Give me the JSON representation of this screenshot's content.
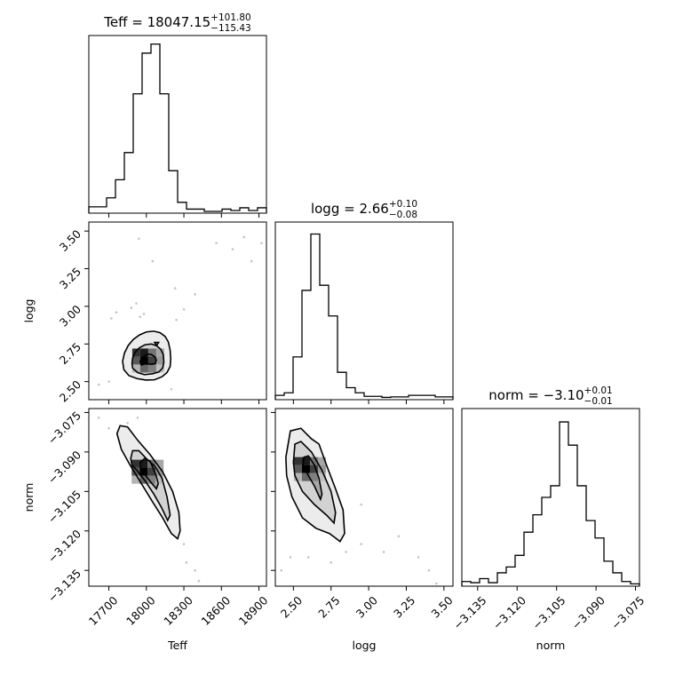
{
  "chart_data": {
    "type": "corner",
    "parameters": [
      "Teff",
      "logg",
      "norm"
    ],
    "titles": [
      {
        "param": "Teff",
        "median": "18047.15",
        "plus": "+101.80",
        "minus": "−115.43"
      },
      {
        "param": "logg",
        "median": "2.66",
        "plus": "+0.10",
        "minus": "−0.08"
      },
      {
        "param": "norm",
        "median": "−3.10",
        "plus": "+0.01",
        "minus": "−0.01"
      }
    ],
    "axes": {
      "Teff": {
        "range": [
          17540,
          18960
        ],
        "ticks": [
          17700,
          18000,
          18300,
          18600,
          18900
        ],
        "tick_labels": [
          "17700",
          "18000",
          "18300",
          "18600",
          "18900"
        ]
      },
      "logg": {
        "range": [
          2.38,
          3.56
        ],
        "ticks": [
          2.5,
          2.75,
          3.0,
          3.25,
          3.5
        ],
        "tick_labels": [
          "2.50",
          "2.75",
          "3.00",
          "3.25",
          "3.50"
        ]
      },
      "norm": {
        "range": [
          -3.141,
          -3.0735
        ],
        "ticks": [
          -3.135,
          -3.12,
          -3.105,
          -3.09,
          -3.075
        ],
        "tick_labels": [
          "−3.135",
          "−3.120",
          "−3.105",
          "−3.090",
          "−3.075"
        ]
      }
    },
    "histograms": [
      {
        "param": "Teff",
        "edges": [
          17540,
          17611,
          17682,
          17753,
          17824,
          17895,
          17966,
          18037,
          18108,
          18179,
          18250,
          18321,
          18392,
          18463,
          18534,
          18605,
          18676,
          18747,
          18818,
          18889,
          18960
        ],
        "counts": [
          1,
          1,
          3,
          7,
          13,
          26,
          35,
          37,
          26,
          9,
          2,
          0.5,
          0.5,
          0,
          0,
          0.5,
          0.2,
          0.8,
          0.2,
          0.8
        ],
        "ymax": 38.5
      },
      {
        "param": "logg",
        "edges": [
          2.38,
          2.439,
          2.498,
          2.557,
          2.616,
          2.675,
          2.734,
          2.793,
          2.852,
          2.911,
          2.97,
          3.029,
          3.088,
          3.147,
          3.206,
          3.265,
          3.324,
          3.383,
          3.442,
          3.501,
          3.56
        ],
        "counts": [
          0.5,
          1,
          8,
          21,
          32,
          22,
          16,
          5,
          2,
          1,
          0.3,
          0.3,
          0.1,
          0.2,
          0.2,
          0.5,
          0.5,
          0.5,
          0.2,
          0.2
        ],
        "ymax": 34
      },
      {
        "param": "norm",
        "edges": [
          -3.141,
          -3.137625,
          -3.13425,
          -3.130875,
          -3.1275,
          -3.124125,
          -3.12075,
          -3.117375,
          -3.114,
          -3.110625,
          -3.10725,
          -3.103875,
          -3.1005,
          -3.097125,
          -3.09375,
          -3.090375,
          -3.087,
          -3.083625,
          -3.08025,
          -3.076875,
          -3.0735
        ],
        "counts": [
          0.5,
          0.3,
          1,
          0.3,
          2,
          3,
          5,
          9,
          12,
          15,
          17,
          28,
          24,
          17,
          11,
          8,
          4,
          2,
          0.5,
          0.1
        ],
        "ymax": 30
      }
    ],
    "contour_levels": [
      "39.3%",
      "86.5%"
    ],
    "joint_panels": [
      {
        "x": "Teff",
        "y": "logg",
        "center": [
          18015,
          2.64
        ],
        "contours": [
          [
            [
              17960,
              2.61
            ],
            [
              17985,
              2.617
            ],
            [
              18015,
              2.618
            ],
            [
              18045,
              2.615
            ],
            [
              18070,
              2.62
            ],
            [
              18080,
              2.643
            ],
            [
              18067,
              2.665
            ],
            [
              18040,
              2.68
            ],
            [
              18012,
              2.683
            ],
            [
              17985,
              2.672
            ],
            [
              17962,
              2.655
            ],
            [
              17950,
              2.633
            ]
          ],
          [
            [
              17890,
              2.59
            ],
            [
              17930,
              2.56
            ],
            [
              17985,
              2.546
            ],
            [
              18050,
              2.552
            ],
            [
              18100,
              2.564
            ],
            [
              18130,
              2.59
            ],
            [
              18140,
              2.63
            ],
            [
              18135,
              2.68
            ],
            [
              18115,
              2.715
            ],
            [
              18082,
              2.738
            ],
            [
              18040,
              2.75
            ],
            [
              17990,
              2.745
            ],
            [
              17945,
              2.725
            ],
            [
              17910,
              2.695
            ],
            [
              17890,
              2.655
            ],
            [
              17885,
              2.62
            ]
          ],
          [
            [
              17820,
              2.58
            ],
            [
              17860,
              2.54
            ],
            [
              17925,
              2.52
            ],
            [
              17995,
              2.51
            ],
            [
              18065,
              2.512
            ],
            [
              18125,
              2.532
            ],
            [
              18165,
              2.56
            ],
            [
              18190,
              2.6
            ],
            [
              18195,
              2.65
            ],
            [
              18190,
              2.71
            ],
            [
              18175,
              2.765
            ],
            [
              18150,
              2.8
            ],
            [
              18110,
              2.825
            ],
            [
              18060,
              2.835
            ],
            [
              18000,
              2.83
            ],
            [
              17945,
              2.81
            ],
            [
              17895,
              2.78
            ],
            [
              17855,
              2.74
            ],
            [
              17825,
              2.69
            ],
            [
              17810,
              2.635
            ]
          ],
          [
            [
              18082,
              2.74
            ],
            [
              18098,
              2.76
            ],
            [
              18066,
              2.76
            ]
          ]
        ],
        "points": [
          [
            17620,
            2.48
          ],
          [
            17720,
            2.92
          ],
          [
            17760,
            2.96
          ],
          [
            17880,
            2.99
          ],
          [
            17920,
            3.02
          ],
          [
            17950,
            2.93
          ],
          [
            18240,
            2.91
          ],
          [
            18390,
            3.08
          ],
          [
            18560,
            3.42
          ],
          [
            18690,
            3.38
          ],
          [
            18780,
            3.46
          ],
          [
            18840,
            3.3
          ],
          [
            18920,
            3.42
          ],
          [
            17940,
            3.45
          ],
          [
            18050,
            3.3
          ],
          [
            18200,
            2.45
          ],
          [
            17700,
            2.5
          ],
          [
            17980,
            2.95
          ],
          [
            18230,
            3.12
          ],
          [
            18300,
            2.98
          ]
        ]
      },
      {
        "x": "Teff",
        "y": "norm",
        "center": [
          18010,
          -3.0975
        ],
        "contours": [
          [
            [
              17950,
              -3.094
            ],
            [
              17985,
              -3.0925
            ],
            [
              18030,
              -3.0935
            ],
            [
              18075,
              -3.0985
            ],
            [
              18095,
              -3.102
            ],
            [
              18080,
              -3.104
            ],
            [
              18045,
              -3.102
            ],
            [
              17995,
              -3.099
            ],
            [
              17955,
              -3.097
            ]
          ],
          [
            [
              17875,
              -3.0925
            ],
            [
              17890,
              -3.0895
            ],
            [
              17940,
              -3.0895
            ],
            [
              18000,
              -3.0925
            ],
            [
              18070,
              -3.0955
            ],
            [
              18125,
              -3.1
            ],
            [
              18165,
              -3.107
            ],
            [
              18190,
              -3.114
            ],
            [
              18170,
              -3.116
            ],
            [
              18120,
              -3.111
            ],
            [
              18060,
              -3.106
            ],
            [
              17990,
              -3.101
            ],
            [
              17925,
              -3.097
            ],
            [
              17885,
              -3.095
            ]
          ],
          [
            [
              17765,
              -3.083
            ],
            [
              17790,
              -3.08
            ],
            [
              17850,
              -3.0805
            ],
            [
              17930,
              -3.0855
            ],
            [
              18030,
              -3.091
            ],
            [
              18130,
              -3.0975
            ],
            [
              18210,
              -3.105
            ],
            [
              18260,
              -3.113
            ],
            [
              18270,
              -3.12
            ],
            [
              18250,
              -3.123
            ],
            [
              18200,
              -3.121
            ],
            [
              18130,
              -3.115
            ],
            [
              18050,
              -3.109
            ],
            [
              17960,
              -3.102
            ],
            [
              17870,
              -3.095
            ],
            [
              17800,
              -3.089
            ]
          ]
        ],
        "points": [
          [
            17620,
            -3.077
          ],
          [
            17700,
            -3.081
          ],
          [
            17850,
            -3.079
          ],
          [
            18300,
            -3.125
          ],
          [
            18320,
            -3.132
          ],
          [
            18390,
            -3.135
          ],
          [
            18420,
            -3.139
          ],
          [
            17930,
            -3.077
          ]
        ]
      },
      {
        "x": "logg",
        "y": "norm",
        "center": [
          2.61,
          -3.0965
        ],
        "contours": [
          [
            [
              2.57,
              -3.092
            ],
            [
              2.6,
              -3.0915
            ],
            [
              2.64,
              -3.095
            ],
            [
              2.67,
              -3.1
            ],
            [
              2.69,
              -3.106
            ],
            [
              2.68,
              -3.108
            ],
            [
              2.64,
              -3.103
            ],
            [
              2.59,
              -3.098
            ],
            [
              2.565,
              -3.095
            ]
          ],
          [
            [
              2.5,
              -3.094
            ],
            [
              2.51,
              -3.087
            ],
            [
              2.55,
              -3.086
            ],
            [
              2.62,
              -3.09
            ],
            [
              2.69,
              -3.097
            ],
            [
              2.75,
              -3.105
            ],
            [
              2.78,
              -3.113
            ],
            [
              2.77,
              -3.117
            ],
            [
              2.72,
              -3.114
            ],
            [
              2.64,
              -3.11
            ],
            [
              2.56,
              -3.105
            ],
            [
              2.51,
              -3.099
            ]
          ],
          [
            [
              2.45,
              -3.092
            ],
            [
              2.48,
              -3.082
            ],
            [
              2.55,
              -3.081
            ],
            [
              2.62,
              -3.085
            ],
            [
              2.67,
              -3.087
            ],
            [
              2.72,
              -3.095
            ],
            [
              2.78,
              -3.104
            ],
            [
              2.83,
              -3.112
            ],
            [
              2.84,
              -3.121
            ],
            [
              2.81,
              -3.124
            ],
            [
              2.74,
              -3.121
            ],
            [
              2.65,
              -3.119
            ],
            [
              2.56,
              -3.115
            ],
            [
              2.49,
              -3.107
            ],
            [
              2.455,
              -3.099
            ]
          ]
        ],
        "points": [
          [
            2.42,
            -3.135
          ],
          [
            2.48,
            -3.13
          ],
          [
            2.85,
            -3.128
          ],
          [
            2.95,
            -3.125
          ],
          [
            3.1,
            -3.128
          ],
          [
            3.2,
            -3.122
          ],
          [
            3.33,
            -3.13
          ],
          [
            3.45,
            -3.14
          ],
          [
            2.95,
            -3.11
          ],
          [
            3.4,
            -3.135
          ],
          [
            2.6,
            -3.13
          ],
          [
            2.75,
            -3.132
          ]
        ]
      }
    ],
    "xlabel_bottom": [
      "Teff",
      "logg",
      "norm"
    ],
    "ylabel_left": [
      "logg",
      "norm"
    ]
  }
}
